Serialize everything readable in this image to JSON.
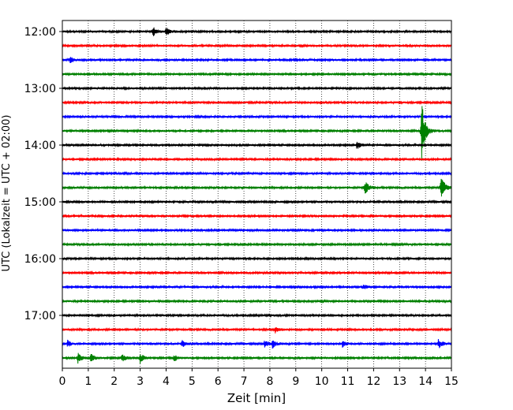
{
  "chart_data": {
    "type": "line",
    "title": "",
    "xlabel": "Zeit  [min]",
    "ylabel": "UTC (Lokalzeit = UTC + 02:00)",
    "xlim": [
      0,
      15
    ],
    "x_ticks": [
      "0",
      "1",
      "2",
      "3",
      "4",
      "5",
      "6",
      "7",
      "8",
      "9",
      "10",
      "11",
      "12",
      "13",
      "14",
      "15"
    ],
    "y_ticks": [
      "12:00",
      "13:00",
      "14:00",
      "15:00",
      "16:00",
      "17:00"
    ],
    "grid": "vertical dotted lines at each minute",
    "colors": [
      "#000000",
      "#ff0000",
      "#0000ff",
      "#008000"
    ],
    "series": [
      {
        "start": "12:00",
        "color": "#000000",
        "events": [
          {
            "t": 3.5,
            "amp": 6
          },
          {
            "t": 4.0,
            "amp": 5
          }
        ]
      },
      {
        "start": "12:15",
        "color": "#ff0000",
        "events": []
      },
      {
        "start": "12:30",
        "color": "#0000ff",
        "events": [
          {
            "t": 0.3,
            "amp": 4
          }
        ]
      },
      {
        "start": "12:45",
        "color": "#008000",
        "events": []
      },
      {
        "start": "13:00",
        "color": "#000000",
        "events": []
      },
      {
        "start": "13:15",
        "color": "#ff0000",
        "events": []
      },
      {
        "start": "13:30",
        "color": "#0000ff",
        "events": []
      },
      {
        "start": "13:45",
        "color": "#008000",
        "events": [
          {
            "t": 13.85,
            "amp": 40
          }
        ]
      },
      {
        "start": "14:00",
        "color": "#000000",
        "events": [
          {
            "t": 11.35,
            "amp": 5
          }
        ]
      },
      {
        "start": "14:15",
        "color": "#ff0000",
        "events": []
      },
      {
        "start": "14:30",
        "color": "#0000ff",
        "events": []
      },
      {
        "start": "14:45",
        "color": "#008000",
        "events": [
          {
            "t": 11.65,
            "amp": 10
          },
          {
            "t": 14.6,
            "amp": 16
          }
        ]
      },
      {
        "start": "15:00",
        "color": "#000000",
        "events": []
      },
      {
        "start": "15:15",
        "color": "#ff0000",
        "events": []
      },
      {
        "start": "15:30",
        "color": "#0000ff",
        "events": []
      },
      {
        "start": "15:45",
        "color": "#008000",
        "events": []
      },
      {
        "start": "16:00",
        "color": "#000000",
        "events": []
      },
      {
        "start": "16:15",
        "color": "#ff0000",
        "events": []
      },
      {
        "start": "16:30",
        "color": "#0000ff",
        "events": [
          {
            "t": 11.6,
            "amp": 3
          }
        ]
      },
      {
        "start": "16:45",
        "color": "#008000",
        "events": []
      },
      {
        "start": "17:00",
        "color": "#000000",
        "events": []
      },
      {
        "start": "17:15",
        "color": "#ff0000",
        "events": [
          {
            "t": 8.2,
            "amp": 4
          },
          {
            "t": 15.0,
            "amp": 4
          }
        ]
      },
      {
        "start": "17:30",
        "color": "#0000ff",
        "events": [
          {
            "t": 0.2,
            "amp": 4
          },
          {
            "t": 4.6,
            "amp": 5
          },
          {
            "t": 7.8,
            "amp": 5
          },
          {
            "t": 8.1,
            "amp": 5
          },
          {
            "t": 10.8,
            "amp": 4
          },
          {
            "t": 14.5,
            "amp": 6
          }
        ]
      },
      {
        "start": "17:45",
        "color": "#008000",
        "events": [
          {
            "t": 0.6,
            "amp": 6
          },
          {
            "t": 1.1,
            "amp": 5
          },
          {
            "t": 2.3,
            "amp": 5
          },
          {
            "t": 3.0,
            "amp": 6
          },
          {
            "t": 4.3,
            "amp": 4
          }
        ]
      }
    ]
  }
}
